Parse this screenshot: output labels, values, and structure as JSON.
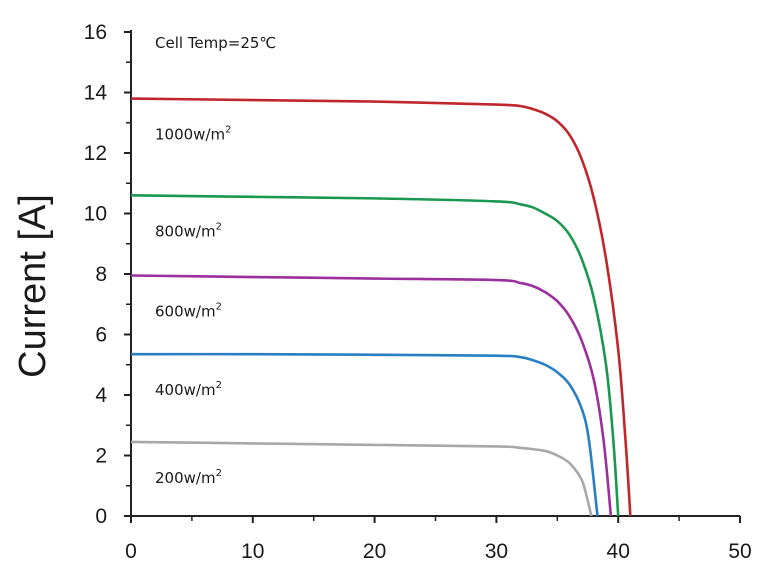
{
  "chart_data": {
    "type": "line",
    "xlabel": "",
    "ylabel": "Current [A]",
    "xlim": [
      0,
      50
    ],
    "ylim": [
      0,
      16
    ],
    "x_ticks": [
      "0",
      "10",
      "20",
      "30",
      "40",
      "50"
    ],
    "y_ticks": [
      "0",
      "2",
      "4",
      "6",
      "8",
      "10",
      "12",
      "14",
      "16"
    ],
    "grid": false,
    "annotation": "Cell Temp=25℃",
    "series": [
      {
        "name": "1000w/m²",
        "label_text": "1000w/m",
        "label_sup": "2",
        "color": "#c0272d",
        "points": [
          [
            0,
            13.8
          ],
          [
            10,
            13.75
          ],
          [
            20,
            13.7
          ],
          [
            30,
            13.6
          ],
          [
            32,
            13.55
          ],
          [
            33,
            13.45
          ],
          [
            34,
            13.3
          ],
          [
            35,
            13.05
          ],
          [
            36,
            12.6
          ],
          [
            37,
            11.8
          ],
          [
            38,
            10.5
          ],
          [
            39,
            8.5
          ],
          [
            40,
            5.5
          ],
          [
            40.6,
            2.5
          ],
          [
            41,
            0
          ]
        ]
      },
      {
        "name": "800w/m²",
        "label_text": "800w/m",
        "label_sup": "2",
        "color": "#1a9850",
        "points": [
          [
            0,
            10.6
          ],
          [
            10,
            10.55
          ],
          [
            20,
            10.5
          ],
          [
            30,
            10.4
          ],
          [
            32,
            10.3
          ],
          [
            33,
            10.2
          ],
          [
            34,
            10.0
          ],
          [
            35,
            9.75
          ],
          [
            36,
            9.3
          ],
          [
            37,
            8.5
          ],
          [
            38,
            7.2
          ],
          [
            39,
            5.0
          ],
          [
            39.6,
            2.5
          ],
          [
            40,
            0
          ]
        ]
      },
      {
        "name": "600w/m²",
        "label_text": "600w/m",
        "label_sup": "2",
        "color": "#9b2f9b",
        "points": [
          [
            0,
            7.95
          ],
          [
            10,
            7.9
          ],
          [
            20,
            7.85
          ],
          [
            30,
            7.8
          ],
          [
            32,
            7.7
          ],
          [
            33,
            7.6
          ],
          [
            34,
            7.4
          ],
          [
            35,
            7.1
          ],
          [
            36,
            6.6
          ],
          [
            37,
            5.8
          ],
          [
            38,
            4.5
          ],
          [
            38.8,
            2.5
          ],
          [
            39.4,
            0
          ]
        ]
      },
      {
        "name": "400w/m²",
        "label_text": "400w/m",
        "label_sup": "2",
        "color": "#2a7fc4",
        "points": [
          [
            0,
            5.35
          ],
          [
            10,
            5.35
          ],
          [
            20,
            5.33
          ],
          [
            30,
            5.3
          ],
          [
            32,
            5.25
          ],
          [
            33,
            5.15
          ],
          [
            34,
            5.0
          ],
          [
            35,
            4.75
          ],
          [
            36,
            4.35
          ],
          [
            37,
            3.55
          ],
          [
            37.6,
            2.5
          ],
          [
            38.3,
            0
          ]
        ]
      },
      {
        "name": "200w/m²",
        "label_text": "200w/m",
        "label_sup": "2",
        "color": "#a8a8a8",
        "points": [
          [
            0,
            2.45
          ],
          [
            10,
            2.4
          ],
          [
            20,
            2.35
          ],
          [
            30,
            2.3
          ],
          [
            32,
            2.25
          ],
          [
            34,
            2.15
          ],
          [
            35,
            2.0
          ],
          [
            36,
            1.75
          ],
          [
            37,
            1.2
          ],
          [
            37.5,
            0.5
          ],
          [
            37.8,
            0
          ]
        ]
      }
    ]
  }
}
